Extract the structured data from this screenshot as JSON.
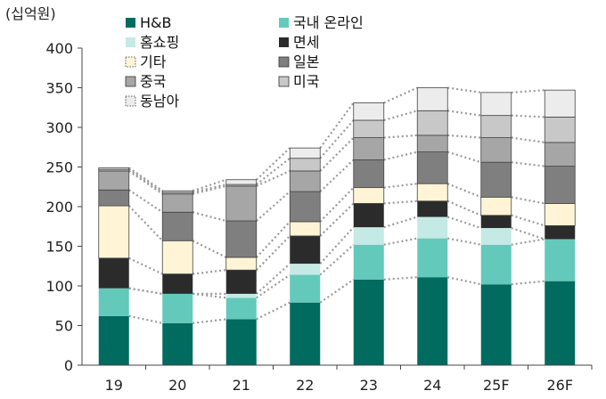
{
  "chart_data": {
    "type": "bar",
    "stacked": true,
    "unit_label": "(십억원)",
    "categories": [
      "19",
      "20",
      "21",
      "22",
      "23",
      "24",
      "25F",
      "26F"
    ],
    "yticks": [
      0,
      50,
      100,
      150,
      200,
      250,
      300,
      350,
      400
    ],
    "ylim": [
      0,
      400
    ],
    "grid": false,
    "connector_lines": "dotted",
    "legend_position": "top",
    "series": [
      {
        "name": "H&B",
        "color": "#006b5e",
        "edge": "#006b5e",
        "values": [
          62,
          53,
          58,
          79,
          108,
          111,
          102,
          106
        ]
      },
      {
        "name": "국내 온라인",
        "color": "#63c9bb",
        "edge": "#63c9bb",
        "values": [
          35,
          37,
          27,
          35,
          44,
          49,
          50,
          53
        ]
      },
      {
        "name": "홈쇼핑",
        "color": "#c5e9e4",
        "edge": "#c5e9e4",
        "values": [
          0,
          0,
          5,
          14,
          22,
          27,
          21,
          0
        ]
      },
      {
        "name": "면세",
        "color": "#2b2b2b",
        "edge": "#2b2b2b",
        "values": [
          38,
          25,
          30,
          35,
          30,
          20,
          16,
          17
        ]
      },
      {
        "name": "기타",
        "color": "#fff5d6",
        "edge": "#444444",
        "values": [
          66,
          42,
          16,
          18,
          20,
          22,
          23,
          28
        ]
      },
      {
        "name": "일본",
        "color": "#7f7f7f",
        "edge": "#444444",
        "values": [
          20,
          36,
          46,
          38,
          35,
          40,
          44,
          47
        ]
      },
      {
        "name": "중국",
        "color": "#a6a6a6",
        "edge": "#444444",
        "values": [
          24,
          23,
          44,
          26,
          28,
          21,
          31,
          30
        ]
      },
      {
        "name": "미국",
        "color": "#c8c8c8",
        "edge": "#444444",
        "values": [
          2,
          2,
          2,
          16,
          22,
          31,
          28,
          32
        ]
      },
      {
        "name": "동남아",
        "color": "#ececec",
        "edge": "#444444",
        "values": [
          2,
          2,
          6,
          13,
          22,
          29,
          29,
          34
        ]
      }
    ]
  }
}
